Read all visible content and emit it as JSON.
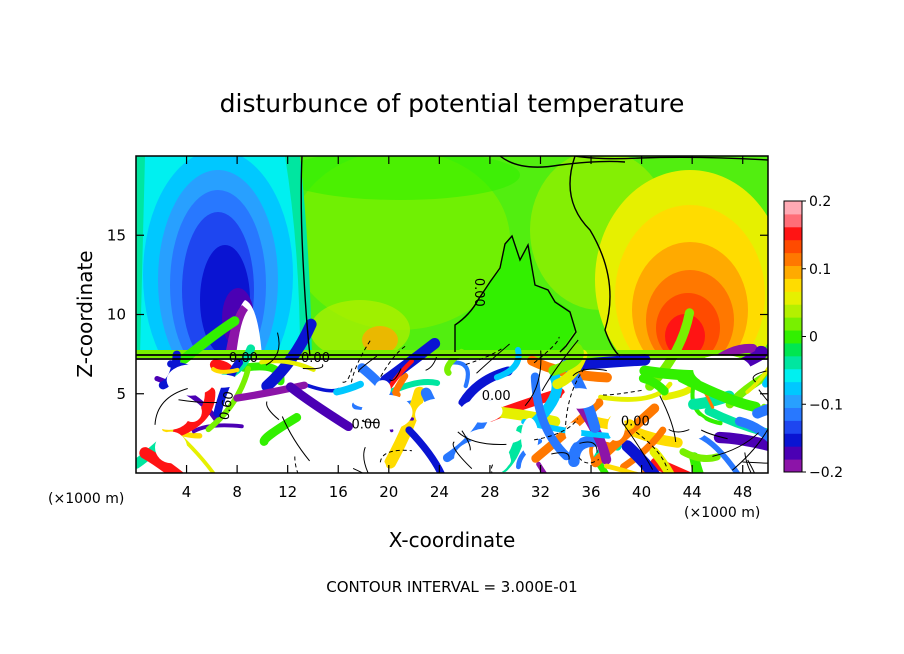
{
  "chart_data": {
    "type": "heatmap",
    "title": "disturbunce of potential temperature",
    "xlabel": "X-coordinate",
    "ylabel": "Z-coordinate",
    "x_unit_left": "(×1000 m)",
    "x_unit_right": "(×1000 m)",
    "footer": "CONTOUR INTERVAL = 3.000E-01",
    "xlim": [
      0,
      50
    ],
    "ylim": [
      0,
      20
    ],
    "x_ticks": [
      4,
      8,
      12,
      16,
      20,
      24,
      28,
      32,
      36,
      40,
      44,
      48
    ],
    "y_ticks": [
      5,
      10,
      15
    ],
    "colorbar": {
      "range": [
        -0.2,
        0.2
      ],
      "tick_values": [
        0.2,
        0.1,
        0,
        -0.1,
        -0.2
      ],
      "tick_labels": [
        "0.2",
        "0.1",
        "0",
        "−0.1",
        "−0.2"
      ],
      "colors": [
        "#8c14a8",
        "#4b00b4",
        "#0a14d2",
        "#1e46f0",
        "#2878ff",
        "#28a0ff",
        "#00c8ff",
        "#00f0f0",
        "#00e6a0",
        "#00e650",
        "#32f000",
        "#78f000",
        "#b4f000",
        "#e6f000",
        "#ffdc00",
        "#ffaa00",
        "#ff7800",
        "#ff4b00",
        "#ff1414",
        "#ff6e78",
        "#ffaab4"
      ]
    },
    "contour_labels": [
      {
        "text": "0.00",
        "x": 26.8,
        "z": 11.4
      },
      {
        "text": "0.00",
        "x": 8.5,
        "z": 7.0
      },
      {
        "text": "0.00",
        "x": 14.2,
        "z": 7.0
      },
      {
        "text": "0.60",
        "x": 7.5,
        "z": 4.2
      },
      {
        "text": "0.00",
        "x": 28.5,
        "z": 4.6
      },
      {
        "text": "0.00",
        "x": 39.5,
        "z": 3.0
      },
      {
        "text": "0.00",
        "x": 18.2,
        "z": 2.8
      }
    ]
  }
}
